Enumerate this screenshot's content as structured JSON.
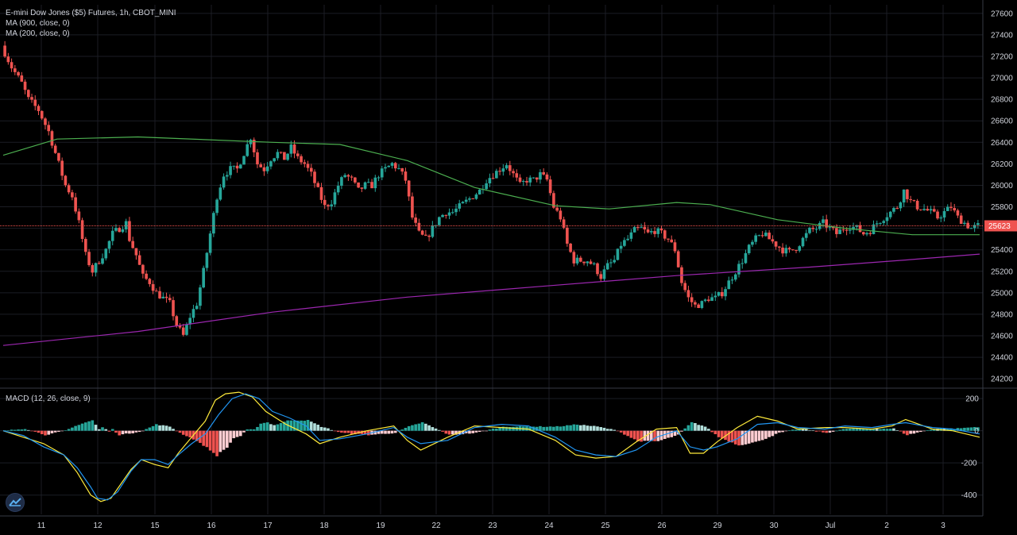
{
  "title": "E-mini Dow Jones ($5) Futures, 1h, CBOT_MINI",
  "indicators": {
    "ma900": "MA (900, close, 0)",
    "ma200": "MA (200, close, 0)",
    "macd": "MACD (12, 26, close, 9)"
  },
  "colors": {
    "background": "#000000",
    "grid": "#1b1d24",
    "up": "#26a69a",
    "down": "#ef5350",
    "ma900": "#9c27b0",
    "ma200": "#4caf50",
    "macd_line": "#2196f3",
    "signal_line": "#ffeb3b",
    "price_line": "#ef5350"
  },
  "chart_data": [
    {
      "type": "candlestick",
      "ylim": [
        24120,
        27680
      ],
      "y_ticks": [
        24200,
        24400,
        24600,
        24800,
        25000,
        25200,
        25400,
        25600,
        25800,
        26000,
        26200,
        26400,
        26600,
        26800,
        27000,
        27200,
        27400,
        27600
      ],
      "x_labels": [
        "11",
        "12",
        "15",
        "16",
        "17",
        "18",
        "19",
        "22",
        "23",
        "24",
        "25",
        "26",
        "29",
        "30",
        "Jul",
        "2",
        "3"
      ],
      "last_price_label": "25623",
      "last_price": 25623,
      "grid": true,
      "price_path": [
        [
          0,
          27300
        ],
        [
          3,
          27100
        ],
        [
          6,
          26950
        ],
        [
          8,
          26800
        ],
        [
          11,
          26700
        ],
        [
          14,
          26500
        ],
        [
          17,
          26200
        ],
        [
          19,
          26000
        ],
        [
          21,
          25900
        ],
        [
          23,
          25650
        ],
        [
          25,
          25350
        ],
        [
          27,
          25200
        ],
        [
          29,
          25300
        ],
        [
          31,
          25400
        ],
        [
          33,
          25550
        ],
        [
          35,
          25600
        ],
        [
          37,
          25650
        ],
        [
          38,
          25500
        ],
        [
          40,
          25350
        ],
        [
          42,
          25150
        ],
        [
          44,
          25100
        ],
        [
          46,
          25000
        ],
        [
          48,
          24950
        ],
        [
          50,
          24900
        ],
        [
          52,
          24700
        ],
        [
          54,
          24600
        ],
        [
          56,
          24780
        ],
        [
          58,
          24900
        ],
        [
          60,
          25200
        ],
        [
          62,
          25550
        ],
        [
          64,
          25900
        ],
        [
          66,
          26100
        ],
        [
          68,
          26150
        ],
        [
          70,
          26150
        ],
        [
          72,
          26300
        ],
        [
          74,
          26450
        ],
        [
          76,
          26200
        ],
        [
          78,
          26150
        ],
        [
          80,
          26250
        ],
        [
          82,
          26300
        ],
        [
          84,
          26250
        ],
        [
          86,
          26350
        ],
        [
          88,
          26250
        ],
        [
          90,
          26200
        ],
        [
          92,
          26100
        ],
        [
          94,
          25950
        ],
        [
          96,
          25800
        ],
        [
          98,
          25850
        ],
        [
          100,
          26000
        ],
        [
          102,
          26100
        ],
        [
          104,
          26050
        ],
        [
          106,
          25950
        ],
        [
          108,
          26000
        ],
        [
          110,
          26000
        ],
        [
          112,
          26100
        ],
        [
          114,
          26150
        ],
        [
          116,
          26200
        ],
        [
          118,
          26150
        ],
        [
          120,
          26050
        ],
        [
          122,
          25700
        ],
        [
          124,
          25550
        ],
        [
          126,
          25500
        ],
        [
          128,
          25600
        ],
        [
          130,
          25700
        ],
        [
          132,
          25750
        ],
        [
          134,
          25750
        ],
        [
          136,
          25800
        ],
        [
          138,
          25850
        ],
        [
          140,
          25900
        ],
        [
          142,
          25950
        ],
        [
          144,
          26050
        ],
        [
          146,
          26100
        ],
        [
          148,
          26150
        ],
        [
          150,
          26200
        ],
        [
          152,
          26100
        ],
        [
          154,
          26000
        ],
        [
          156,
          26050
        ],
        [
          158,
          26050
        ],
        [
          160,
          26100
        ],
        [
          162,
          26050
        ],
        [
          164,
          25800
        ],
        [
          166,
          25700
        ],
        [
          168,
          25450
        ],
        [
          170,
          25300
        ],
        [
          172,
          25300
        ],
        [
          174,
          25300
        ],
        [
          176,
          25250
        ],
        [
          178,
          25150
        ],
        [
          180,
          25250
        ],
        [
          182,
          25300
        ],
        [
          184,
          25450
        ],
        [
          186,
          25500
        ],
        [
          188,
          25580
        ],
        [
          190,
          25600
        ],
        [
          192,
          25550
        ],
        [
          194,
          25580
        ],
        [
          196,
          25550
        ],
        [
          198,
          25500
        ],
        [
          200,
          25400
        ],
        [
          202,
          25100
        ],
        [
          204,
          24950
        ],
        [
          206,
          24880
        ],
        [
          208,
          24900
        ],
        [
          210,
          24950
        ],
        [
          212,
          24950
        ],
        [
          214,
          25000
        ],
        [
          216,
          25100
        ],
        [
          218,
          25200
        ],
        [
          220,
          25300
        ],
        [
          222,
          25420
        ],
        [
          224,
          25500
        ],
        [
          226,
          25550
        ],
        [
          228,
          25500
        ],
        [
          230,
          25450
        ],
        [
          232,
          25400
        ],
        [
          234,
          25380
        ],
        [
          236,
          25420
        ],
        [
          238,
          25500
        ],
        [
          240,
          25580
        ],
        [
          242,
          25600
        ],
        [
          244,
          25650
        ],
        [
          246,
          25600
        ],
        [
          248,
          25550
        ],
        [
          250,
          25600
        ],
        [
          252,
          25620
        ],
        [
          254,
          25600
        ],
        [
          256,
          25550
        ],
        [
          258,
          25580
        ],
        [
          260,
          25650
        ],
        [
          262,
          25700
        ],
        [
          264,
          25750
        ],
        [
          266,
          25800
        ],
        [
          268,
          25950
        ],
        [
          270,
          25850
        ],
        [
          272,
          25800
        ],
        [
          274,
          25780
        ],
        [
          276,
          25750
        ],
        [
          278,
          25700
        ],
        [
          280,
          25750
        ],
        [
          282,
          25800
        ],
        [
          284,
          25700
        ],
        [
          286,
          25650
        ],
        [
          288,
          25600
        ],
        [
          290,
          25623
        ]
      ],
      "ma200_path": [
        [
          0,
          26280
        ],
        [
          16,
          26430
        ],
        [
          40,
          26450
        ],
        [
          80,
          26400
        ],
        [
          100,
          26380
        ],
        [
          120,
          26230
        ],
        [
          140,
          25980
        ],
        [
          164,
          25810
        ],
        [
          180,
          25780
        ],
        [
          200,
          25840
        ],
        [
          210,
          25820
        ],
        [
          230,
          25680
        ],
        [
          250,
          25600
        ],
        [
          260,
          25570
        ],
        [
          270,
          25540
        ],
        [
          290,
          25540
        ]
      ],
      "ma900_path": [
        [
          0,
          24510
        ],
        [
          40,
          24640
        ],
        [
          80,
          24820
        ],
        [
          120,
          24960
        ],
        [
          160,
          25060
        ],
        [
          200,
          25160
        ],
        [
          240,
          25240
        ],
        [
          270,
          25310
        ],
        [
          290,
          25360
        ]
      ]
    },
    {
      "type": "macd",
      "ylim": [
        -520,
        260
      ],
      "y_ticks": [
        200,
        0,
        -200,
        -400
      ],
      "macd_path": [
        [
          0,
          0
        ],
        [
          6,
          -30
        ],
        [
          12,
          -100
        ],
        [
          18,
          -150
        ],
        [
          22,
          -230
        ],
        [
          26,
          -350
        ],
        [
          28,
          -420
        ],
        [
          31,
          -430
        ],
        [
          34,
          -380
        ],
        [
          38,
          -250
        ],
        [
          41,
          -180
        ],
        [
          45,
          -180
        ],
        [
          49,
          -210
        ],
        [
          52,
          -150
        ],
        [
          56,
          -80
        ],
        [
          60,
          -20
        ],
        [
          64,
          100
        ],
        [
          68,
          200
        ],
        [
          72,
          230
        ],
        [
          76,
          200
        ],
        [
          80,
          120
        ],
        [
          85,
          80
        ],
        [
          90,
          30
        ],
        [
          94,
          -60
        ],
        [
          100,
          -50
        ],
        [
          108,
          -20
        ],
        [
          116,
          20
        ],
        [
          120,
          -40
        ],
        [
          124,
          -80
        ],
        [
          128,
          -70
        ],
        [
          132,
          -60
        ],
        [
          140,
          20
        ],
        [
          148,
          40
        ],
        [
          156,
          30
        ],
        [
          164,
          -40
        ],
        [
          170,
          -120
        ],
        [
          176,
          -150
        ],
        [
          182,
          -160
        ],
        [
          188,
          -120
        ],
        [
          194,
          -40
        ],
        [
          200,
          0
        ],
        [
          204,
          -100
        ],
        [
          208,
          -120
        ],
        [
          212,
          -100
        ],
        [
          218,
          -50
        ],
        [
          224,
          40
        ],
        [
          230,
          50
        ],
        [
          236,
          20
        ],
        [
          244,
          10
        ],
        [
          250,
          30
        ],
        [
          258,
          20
        ],
        [
          264,
          40
        ],
        [
          268,
          50
        ],
        [
          276,
          20
        ],
        [
          282,
          10
        ],
        [
          290,
          -20
        ]
      ],
      "signal_path": [
        [
          0,
          0
        ],
        [
          6,
          -40
        ],
        [
          12,
          -80
        ],
        [
          18,
          -150
        ],
        [
          22,
          -260
        ],
        [
          26,
          -400
        ],
        [
          29,
          -440
        ],
        [
          32,
          -420
        ],
        [
          35,
          -330
        ],
        [
          38,
          -240
        ],
        [
          41,
          -180
        ],
        [
          45,
          -210
        ],
        [
          49,
          -230
        ],
        [
          52,
          -140
        ],
        [
          56,
          -40
        ],
        [
          60,
          60
        ],
        [
          63,
          190
        ],
        [
          66,
          230
        ],
        [
          70,
          240
        ],
        [
          74,
          210
        ],
        [
          78,
          120
        ],
        [
          84,
          40
        ],
        [
          90,
          -20
        ],
        [
          94,
          -80
        ],
        [
          100,
          -40
        ],
        [
          108,
          0
        ],
        [
          116,
          30
        ],
        [
          120,
          -60
        ],
        [
          124,
          -120
        ],
        [
          128,
          -80
        ],
        [
          132,
          -40
        ],
        [
          140,
          30
        ],
        [
          148,
          20
        ],
        [
          156,
          10
        ],
        [
          164,
          -60
        ],
        [
          170,
          -150
        ],
        [
          176,
          -170
        ],
        [
          182,
          -160
        ],
        [
          188,
          -70
        ],
        [
          194,
          10
        ],
        [
          200,
          20
        ],
        [
          204,
          -140
        ],
        [
          208,
          -140
        ],
        [
          212,
          -70
        ],
        [
          218,
          20
        ],
        [
          224,
          90
        ],
        [
          230,
          60
        ],
        [
          236,
          10
        ],
        [
          244,
          20
        ],
        [
          250,
          20
        ],
        [
          258,
          10
        ],
        [
          264,
          30
        ],
        [
          268,
          70
        ],
        [
          276,
          10
        ],
        [
          282,
          0
        ],
        [
          290,
          -40
        ]
      ]
    }
  ]
}
